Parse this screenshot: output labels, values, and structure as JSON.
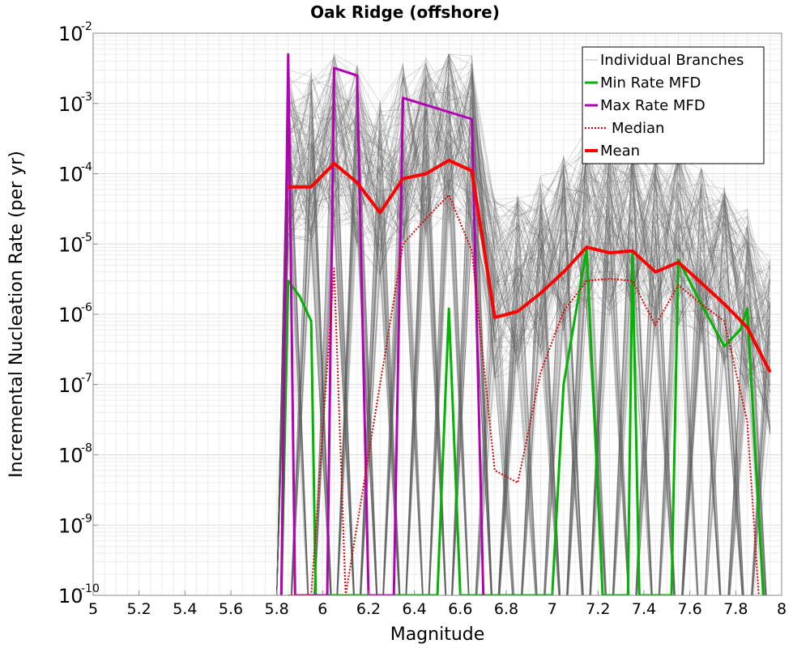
{
  "chart_data": {
    "type": "line",
    "title": "Oak Ridge (offshore)",
    "xlabel": "Magnitude",
    "ylabel": "Incremental Nucleation Rate (per yr)",
    "xlim": [
      5,
      8
    ],
    "ylim_log10": [
      -10,
      -2
    ],
    "xticks": [
      5,
      5.2,
      5.4,
      5.6,
      5.8,
      6,
      6.2,
      6.4,
      6.6,
      6.8,
      7,
      7.2,
      7.4,
      7.6,
      7.8,
      8
    ],
    "xtick_labels": [
      "5",
      "5.2",
      "5.4",
      "5.6",
      "5.8",
      "6",
      "6.2",
      "6.4",
      "6.6",
      "6.8",
      "7",
      "7.2",
      "7.4",
      "7.6",
      "7.8",
      "8"
    ],
    "yticks": [
      {
        "base": "10",
        "exp": "-2",
        "log10": -2
      },
      {
        "base": "10",
        "exp": "-3",
        "log10": -3
      },
      {
        "base": "10",
        "exp": "-4",
        "log10": -4
      },
      {
        "base": "10",
        "exp": "-5",
        "log10": -5
      },
      {
        "base": "10",
        "exp": "-6",
        "log10": -6
      },
      {
        "base": "10",
        "exp": "-7",
        "log10": -7
      },
      {
        "base": "10",
        "exp": "-8",
        "log10": -8
      },
      {
        "base": "10",
        "exp": "-9",
        "log10": -9
      },
      {
        "base": "10",
        "exp": "-10",
        "log10": -10
      }
    ],
    "grid": true,
    "legend_position": "top-right",
    "legend": [
      {
        "label": "Individual Branches",
        "color": "#b8b8b8",
        "style": "solid-thin"
      },
      {
        "label": "Min Rate MFD",
        "color": "#00b400",
        "style": "solid"
      },
      {
        "label": "Max Rate MFD",
        "color": "#b400b4",
        "style": "solid"
      },
      {
        "label": "Median",
        "color": "#e00000",
        "style": "dotted"
      },
      {
        "label": "Mean",
        "color": "#ff0000",
        "style": "solid-thick"
      }
    ],
    "series": [
      {
        "name": "Mean",
        "color": "#ff0000",
        "x": [
          5.85,
          5.95,
          6.05,
          6.15,
          6.25,
          6.35,
          6.45,
          6.55,
          6.65,
          6.75,
          6.85,
          6.95,
          7.05,
          7.15,
          7.25,
          7.35,
          7.45,
          7.55,
          7.65,
          7.75,
          7.85,
          7.95
        ],
        "y": [
          6.5e-05,
          6.5e-05,
          0.00014,
          7.5e-05,
          2.8e-05,
          8.5e-05,
          0.0001,
          0.000155,
          0.00011,
          9e-07,
          1.1e-06,
          2e-06,
          4e-06,
          9e-06,
          7.5e-06,
          8e-06,
          4e-06,
          5.5e-06,
          2.8e-06,
          1.4e-06,
          6.5e-07,
          1.5e-07
        ]
      },
      {
        "name": "Median",
        "color": "#e00000",
        "x": [
          5.85,
          5.95,
          6.05,
          6.1,
          6.35,
          6.45,
          6.55,
          6.65,
          6.75,
          6.85,
          6.95,
          7.05,
          7.15,
          7.25,
          7.35,
          7.45,
          7.55,
          7.65,
          7.75,
          7.85,
          7.9
        ],
        "y": [
          1e-10,
          1e-10,
          4.5e-06,
          1e-10,
          1e-05,
          2.3e-05,
          5e-05,
          8e-06,
          6e-09,
          4e-09,
          1.5e-07,
          1.1e-06,
          3e-06,
          3.2e-06,
          3e-06,
          7e-07,
          2.6e-06,
          1.4e-06,
          8e-07,
          3e-08,
          1e-10
        ]
      },
      {
        "name": "Min Rate MFD",
        "color": "#00b400",
        "x": [
          5.82,
          5.85,
          5.9,
          5.95,
          5.97,
          6.5,
          6.55,
          6.6,
          7.0,
          7.05,
          7.15,
          7.22,
          7.33,
          7.35,
          7.38,
          7.52,
          7.55,
          7.65,
          7.75,
          7.82,
          7.85,
          7.92
        ],
        "y": [
          1e-10,
          3e-06,
          1.8e-06,
          8e-07,
          1e-10,
          1e-10,
          1.2e-06,
          1e-10,
          1e-10,
          1e-07,
          8.5e-06,
          1e-10,
          1e-10,
          7.5e-06,
          1e-10,
          1e-10,
          6e-06,
          1.4e-06,
          3.5e-07,
          6e-07,
          1.2e-06,
          1e-10
        ]
      },
      {
        "name": "Max Rate MFD",
        "color": "#b400b4",
        "x": [
          5.82,
          5.85,
          5.88,
          6.02,
          6.05,
          6.15,
          6.2,
          6.31,
          6.35,
          6.65,
          6.7
        ],
        "y": [
          1e-10,
          0.005,
          1e-10,
          1e-10,
          0.0032,
          0.0025,
          1e-10,
          1e-10,
          0.0012,
          0.0006,
          1e-10
        ]
      }
    ]
  }
}
